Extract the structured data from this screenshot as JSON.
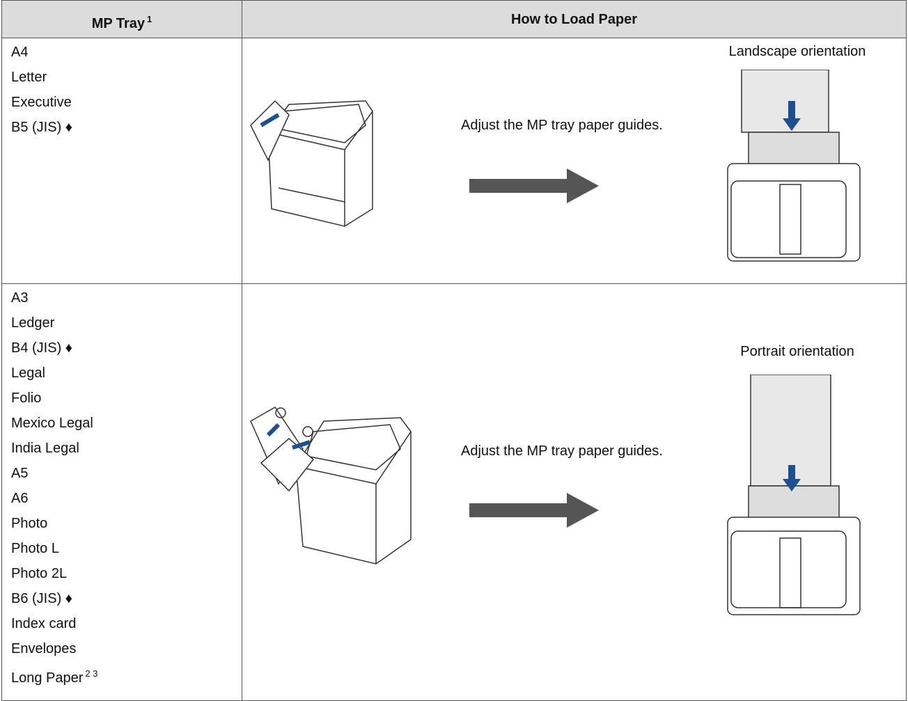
{
  "table": {
    "headers": [
      {
        "text": "MP Tray",
        "sup": "1"
      },
      {
        "text": "How to Load Paper"
      }
    ],
    "rows": [
      {
        "sizes": [
          {
            "text": "A4"
          },
          {
            "text": "Letter"
          },
          {
            "text": "Executive"
          },
          {
            "text": "B5 (JIS) ♦"
          }
        ],
        "instruction": "Adjust the MP tray paper guides.",
        "orientation": "Landscape orientation"
      },
      {
        "sizes": [
          {
            "text": "A3"
          },
          {
            "text": "Ledger"
          },
          {
            "text": "B4 (JIS) ♦"
          },
          {
            "text": "Legal"
          },
          {
            "text": "Folio"
          },
          {
            "text": "Mexico Legal"
          },
          {
            "text": "India Legal"
          },
          {
            "text": "A5"
          },
          {
            "text": "A6"
          },
          {
            "text": "Photo"
          },
          {
            "text": "Photo L"
          },
          {
            "text": "Photo 2L"
          },
          {
            "text": "B6 (JIS) ♦"
          },
          {
            "text": "Index card"
          },
          {
            "text": "Envelopes"
          },
          {
            "text": "Long Paper",
            "sup": "2 3"
          }
        ],
        "instruction": "Adjust the MP tray paper guides.",
        "orientation": "Portrait orientation"
      }
    ]
  }
}
